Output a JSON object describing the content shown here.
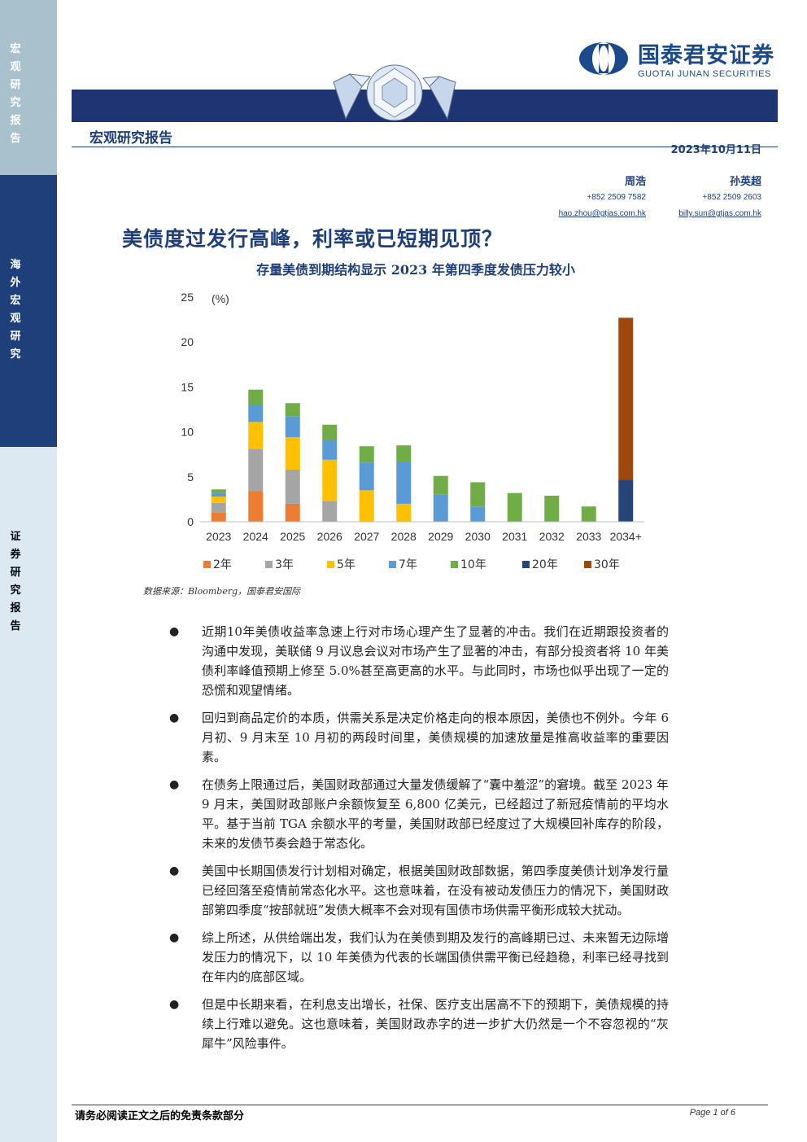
{
  "sidebar": {
    "section1": "宏观研究报告",
    "section2": "海外宏观研究",
    "section3": "证券研究报告"
  },
  "brand": {
    "name_cn": "国泰君安证券",
    "name_en": "GUOTAI JUNAN SECURITIES",
    "logo_icon": "gtja-logo-icon"
  },
  "report_type": "宏观研究报告",
  "date": "2023年10月11日",
  "authors": [
    {
      "name": "周浩",
      "phone": "+852 2509 7582",
      "email": "hao.zhou@gtjas.com.hk"
    },
    {
      "name": "孙英超",
      "phone": "+852 2509 2603",
      "email": "billy.sun@gtjas.com.hk"
    }
  ],
  "title": "美债度过发行高峰，利率或已短期见顶？",
  "chart_title": "存量美债到期结构显示 2023 年第四季度发债压力较小",
  "chart_data": {
    "type": "bar",
    "stacked": true,
    "unit_label": "(%)",
    "ylim": [
      0,
      25
    ],
    "yticks": [
      "0",
      "5",
      "10",
      "15",
      "20",
      "25"
    ],
    "categories": [
      "2023",
      "2024",
      "2025",
      "2026",
      "2027",
      "2028",
      "2029",
      "2030",
      "2031",
      "2032",
      "2033",
      "2034+"
    ],
    "series": [
      {
        "name": "2年",
        "color": "#ed7d31",
        "values": [
          1.0,
          3.4,
          2.0,
          0,
          0,
          0,
          0,
          0,
          0,
          0,
          0,
          0
        ]
      },
      {
        "name": "3年",
        "color": "#a5a5a5",
        "values": [
          1.1,
          4.7,
          3.8,
          2.3,
          0,
          0,
          0,
          0,
          0,
          0,
          0,
          0
        ]
      },
      {
        "name": "5年",
        "color": "#ffc000",
        "values": [
          0.7,
          3.0,
          3.6,
          4.6,
          3.5,
          2.0,
          0,
          0,
          0,
          0,
          0,
          0
        ]
      },
      {
        "name": "7年",
        "color": "#5b9bd5",
        "values": [
          0.4,
          1.9,
          2.3,
          2.2,
          3.1,
          4.7,
          3.0,
          1.7,
          0,
          0,
          0,
          0
        ]
      },
      {
        "name": "10年",
        "color": "#70ad47",
        "values": [
          0.4,
          1.7,
          1.5,
          1.7,
          1.8,
          1.8,
          2.1,
          2.7,
          3.2,
          2.9,
          1.7,
          0
        ]
      },
      {
        "name": "20年",
        "color": "#264478",
        "values": [
          0,
          0,
          0,
          0,
          0,
          0,
          0,
          0,
          0,
          0,
          0,
          4.7
        ]
      },
      {
        "name": "30年",
        "color": "#9e480e",
        "values": [
          0,
          0,
          0,
          0,
          0,
          0,
          0,
          0,
          0,
          0,
          0,
          18.0
        ]
      }
    ],
    "legend_position": "bottom",
    "grid": false
  },
  "source": "数据来源：Bloomberg，国泰君安国际",
  "bullets": [
    "近期10年美债收益率急速上行对市场心理产生了显著的冲击。我们在近期跟投资者的沟通中发现，美联储 9 月议息会议对市场产生了显著的冲击，有部分投资者将 10 年美债利率峰值预期上修至 5.0%甚至高更高的水平。与此同时，市场也似乎出现了一定的恐慌和观望情绪。",
    "回归到商品定价的本质，供需关系是决定价格走向的根本原因，美债也不例外。今年 6 月初、9 月末至 10 月初的两段时间里，美债规模的加速放量是推高收益率的重要因素。",
    "在债务上限通过后，美国财政部通过大量发债缓解了“囊中羞涩”的窘境。截至 2023 年 9 月末，美国财政部账户余额恢复至 6,800 亿美元，已经超过了新冠疫情前的平均水平。基于当前 TGA 余额水平的考量，美国财政部已经度过了大规模回补库存的阶段，未来的发债节奏会趋于常态化。",
    "美国中长期国债发行计划相对确定，根据美国财政部数据，第四季度美债计划净发行量已经回落至疫情前常态化水平。这也意味着，在没有被动发债压力的情况下，美国财政部第四季度“按部就班”发债大概率不会对现有国债市场供需平衡形成较大扰动。",
    "综上所述，从供给端出发，我们认为在美债到期及发行的高峰期已过、未来暂无边际增发压力的情况下，以 10 年美债为代表的长端国债供需平衡已经趋稳，利率已经寻找到在年内的底部区域。",
    "但是中长期来看，在利息支出增长，社保、医疗支出居高不下的预期下，美债规模的持续上行难以避免。这也意味着，美国财政赤字的进一步扩大仍然是一个不容忽视的“灰犀牛”风险事件。"
  ],
  "bullet_symbol": "●",
  "footer": {
    "disclaimer": "请务必阅读正文之后的免责条款部分",
    "page": "Page 1 of 6"
  }
}
